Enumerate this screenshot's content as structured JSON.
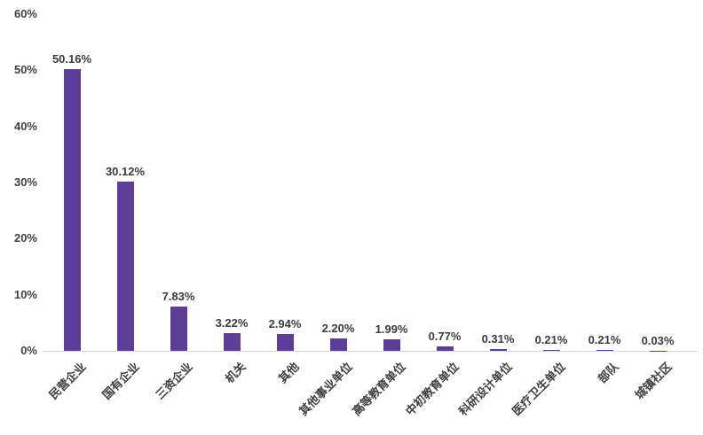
{
  "chart_data": {
    "type": "bar",
    "title": "",
    "xlabel": "",
    "ylabel": "",
    "grid": false,
    "legend": "none",
    "ylim": [
      0,
      60
    ],
    "y_ticks": [
      "60%",
      "50%",
      "40%",
      "30%",
      "20%",
      "10%",
      "0%"
    ],
    "ytick_values": [
      60,
      50,
      40,
      30,
      20,
      10,
      0
    ],
    "categories": [
      "民营企业",
      "国有企业",
      "三资企业",
      "机关",
      "其他",
      "其他事业单位",
      "高等教育单位",
      "中初教育单位",
      "科研设计单位",
      "医疗卫生单位",
      "部队",
      "城镇社区"
    ],
    "values": [
      50.16,
      30.12,
      7.83,
      3.22,
      2.94,
      2.2,
      1.99,
      0.77,
      0.31,
      0.21,
      0.21,
      0.03
    ],
    "data_labels": [
      "50.16%",
      "30.12%",
      "7.83%",
      "3.22%",
      "2.94%",
      "2.20%",
      "1.99%",
      "0.77%",
      "0.31%",
      "0.21%",
      "0.21%",
      "0.03%"
    ],
    "bar_color": "#5b3e97",
    "axis_line_color": "#d6d6d6",
    "label_color": "#3b3b3b"
  }
}
